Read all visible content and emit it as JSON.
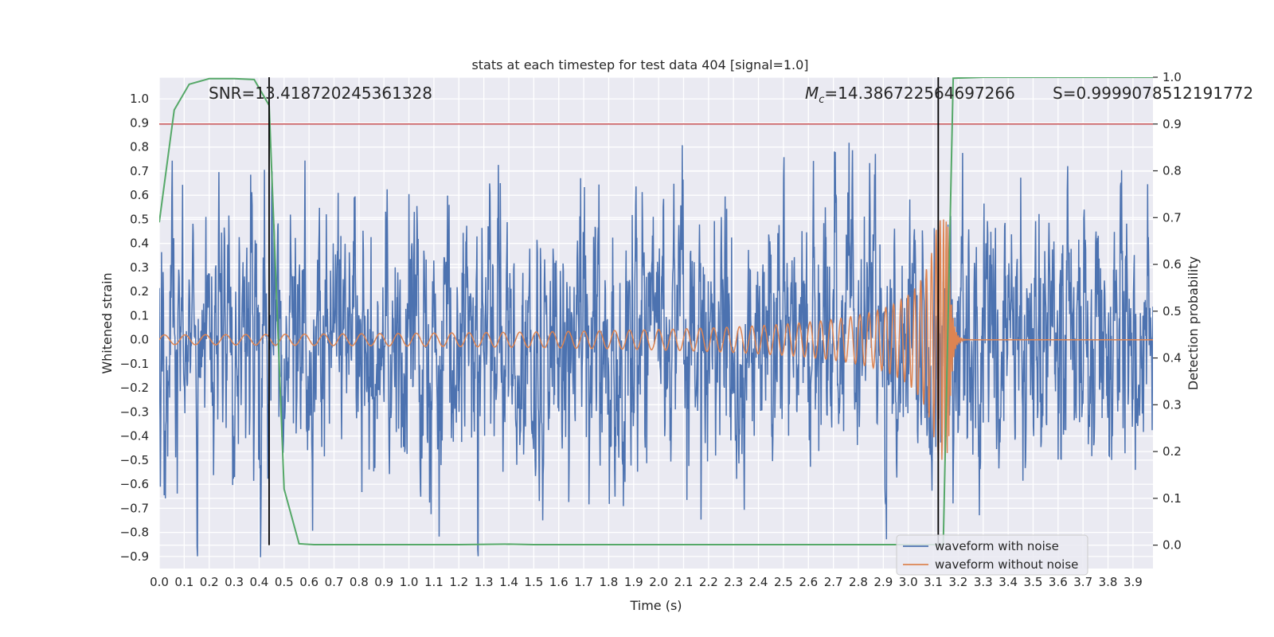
{
  "chart_data": {
    "type": "line",
    "title": "stats at each timestep for test data 404 [signal=1.0]",
    "xlabel": "Time (s)",
    "ylabel_left": "Whitened strain",
    "ylabel_right": "Detection probability",
    "xlim": [
      0.0,
      3.98
    ],
    "ylim_left": [
      -0.95,
      1.09
    ],
    "ylim_right": [
      -0.05,
      1.0
    ],
    "x_ticks": [
      "0.0",
      "0.1",
      "0.2",
      "0.3",
      "0.4",
      "0.5",
      "0.6",
      "0.7",
      "0.8",
      "0.9",
      "1.0",
      "1.1",
      "1.2",
      "1.3",
      "1.4",
      "1.5",
      "1.6",
      "1.7",
      "1.8",
      "1.9",
      "2.0",
      "2.1",
      "2.2",
      "2.3",
      "2.4",
      "2.5",
      "2.6",
      "2.7",
      "2.8",
      "2.9",
      "3.0",
      "3.1",
      "3.2",
      "3.3",
      "3.4",
      "3.5",
      "3.6",
      "3.7",
      "3.8",
      "3.9"
    ],
    "y_left_ticks": [
      "1.0",
      "0.9",
      "0.8",
      "0.7",
      "0.6",
      "0.5",
      "0.4",
      "0.3",
      "0.2",
      "0.1",
      "0.0",
      "-0.1",
      "-0.2",
      "-0.3",
      "-0.4",
      "-0.5",
      "-0.6",
      "-0.7",
      "-0.8",
      "-0.9"
    ],
    "y_right_ticks": [
      "1.0",
      "0.9",
      "0.8",
      "0.7",
      "0.6",
      "0.5",
      "0.4",
      "0.3",
      "0.2",
      "0.1",
      "0.0"
    ],
    "grid": true,
    "legend_position": "lower-right",
    "annotations": {
      "snr": "SNR=13.418720245361328",
      "mc": "=14.386722564697266",
      "mc_symbol": "M",
      "mc_sub": "c",
      "s": "S=0.9999078512191772"
    },
    "series": [
      {
        "name": "waveform with noise",
        "axis": "left",
        "color": "#4c72b0",
        "kind": "noise",
        "approx_spread": 0.3
      },
      {
        "name": "waveform without noise",
        "axis": "left",
        "color": "#dd8452",
        "kind": "chirp",
        "merger_time": 3.16,
        "start_amplitude": 0.02,
        "peak_amplitude": 0.5
      }
    ],
    "detection_probability": {
      "axis": "right",
      "color": "#55a868",
      "x": [
        0.0,
        0.06,
        0.12,
        0.2,
        0.3,
        0.38,
        0.44,
        0.5,
        0.56,
        0.62,
        0.7,
        0.9,
        1.2,
        1.4,
        1.5,
        2.0,
        2.5,
        2.9,
        3.12,
        3.14,
        3.16,
        3.18,
        3.3,
        3.5,
        3.7,
        3.9,
        3.98
      ],
      "y": [
        0.69,
        0.93,
        0.985,
        0.997,
        0.997,
        0.995,
        0.94,
        0.12,
        0.003,
        0.001,
        0.001,
        0.001,
        0.001,
        0.002,
        0.001,
        0.001,
        0.001,
        0.001,
        0.001,
        0.001,
        0.5,
        0.998,
        1.0,
        1.0,
        1.0,
        1.0,
        1.0
      ]
    },
    "threshold": {
      "axis": "right",
      "value": 0.9,
      "color": "#c44e52"
    },
    "event_markers": {
      "color": "#000000",
      "x": [
        0.44,
        3.12
      ]
    }
  }
}
